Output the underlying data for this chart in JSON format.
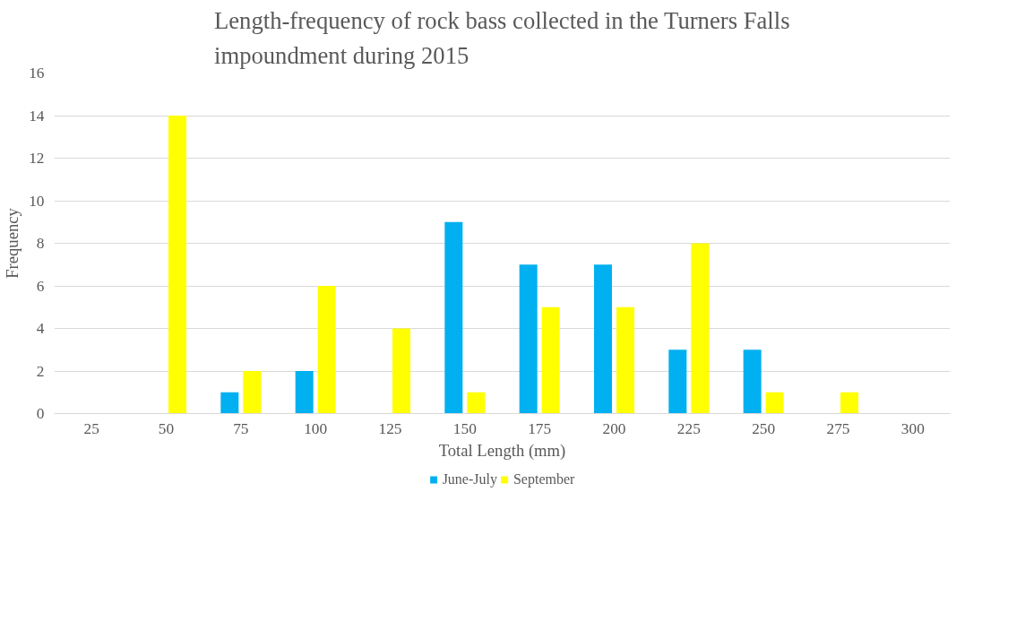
{
  "chart_data": {
    "type": "bar",
    "title": "Length-frequency of rock bass collected in the Turners Falls impoundment during 2015",
    "xlabel": "Total Length (mm)",
    "ylabel": "Frequency",
    "categories": [
      "25",
      "50",
      "75",
      "100",
      "125",
      "150",
      "175",
      "200",
      "225",
      "250",
      "275",
      "300"
    ],
    "series": [
      {
        "name": "June-July",
        "color": "#00b0f0",
        "values": [
          0,
          0,
          1,
          2,
          0,
          9,
          7,
          7,
          3,
          3,
          0,
          0
        ]
      },
      {
        "name": "September",
        "color": "#ffff00",
        "values": [
          0,
          14,
          2,
          6,
          4,
          1,
          5,
          5,
          8,
          1,
          1,
          0
        ]
      }
    ],
    "ylim": [
      0,
      16
    ],
    "yticks": [
      0,
      2,
      4,
      6,
      8,
      10,
      12,
      14,
      16
    ],
    "grid": "y",
    "legend": "bottom"
  }
}
